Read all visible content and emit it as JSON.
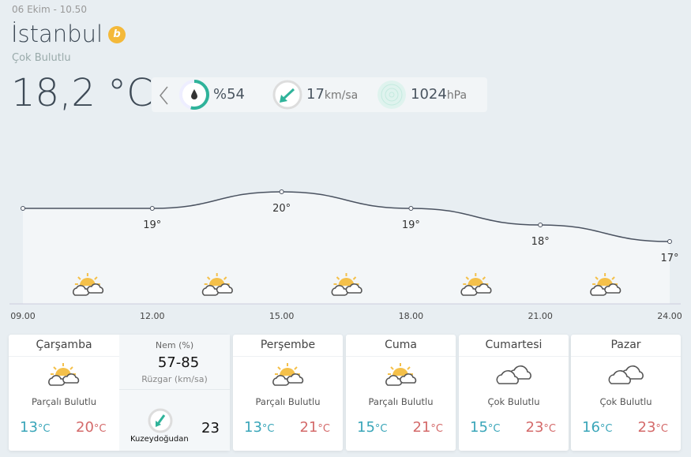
{
  "header": {
    "date": "06 Ekim - 10.50",
    "city": "İstanbul",
    "badge": "b",
    "condition": "Çok Bulutlu",
    "temperature": "18,2 °C"
  },
  "stats": {
    "humidity": "%54",
    "humidity_fraction": 0.54,
    "wind_value": "17",
    "wind_unit": "km/sa",
    "pressure_value": "1024",
    "pressure_unit": "hPa"
  },
  "chart_data": {
    "type": "line",
    "x": [
      "09.00",
      "12.00",
      "15.00",
      "18.00",
      "21.00",
      "24.00"
    ],
    "values": [
      19,
      19,
      20,
      19,
      18,
      17
    ],
    "labels": [
      "",
      "19°",
      "20°",
      "19°",
      "18°",
      "17°"
    ],
    "icons": [
      "partly-cloudy",
      "partly-cloudy",
      "partly-cloudy",
      "partly-cloudy",
      "partly-cloudy"
    ]
  },
  "days": [
    {
      "day": "Çarşamba",
      "desc": "Parçalı Bulutlu",
      "low": "13",
      "high": "20",
      "icon": "partly-cloudy"
    },
    {
      "day": "Perşembe",
      "desc": "Parçalı Bulutlu",
      "low": "13",
      "high": "21",
      "icon": "partly-cloudy"
    },
    {
      "day": "Cuma",
      "desc": "Parçalı Bulutlu",
      "low": "15",
      "high": "21",
      "icon": "partly-cloudy"
    },
    {
      "day": "Cumartesi",
      "desc": "Çok Bulutlu",
      "low": "15",
      "high": "23",
      "icon": "cloudy"
    },
    {
      "day": "Pazar",
      "desc": "Çok Bulutlu",
      "low": "16",
      "high": "23",
      "icon": "cloudy"
    }
  ],
  "unit": "°C",
  "detail": {
    "humidity_label": "Nem (%)",
    "humidity_value": "57-85",
    "wind_label": "Rüzgar (km/sa)",
    "wind_dir": "Kuzeydoğudan",
    "wind_value": "23"
  },
  "colors": {
    "accent": "#2fb39a",
    "low": "#3aa6b9",
    "high": "#d46a6a",
    "sun": "#f4c04a"
  }
}
